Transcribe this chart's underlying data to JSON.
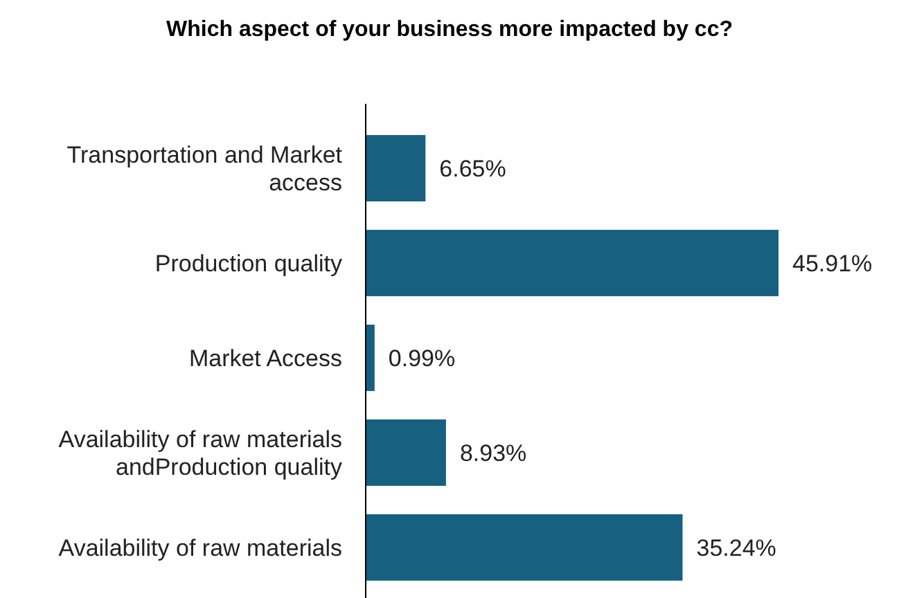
{
  "chart_data": {
    "type": "bar",
    "orientation": "horizontal",
    "title": "Which aspect of your business more impacted by cc?",
    "categories": [
      "Transportation and Market access",
      "Production quality",
      "Market Access",
      "Availability of raw materials andProduction quality",
      "Availability of raw materials"
    ],
    "values": [
      6.65,
      45.91,
      0.99,
      8.93,
      35.24
    ],
    "color": "#17607f",
    "data_labels": true,
    "value_labels": [
      "6.65%",
      "45.91%",
      "0.99%",
      "8.93%",
      "35.24%"
    ]
  }
}
